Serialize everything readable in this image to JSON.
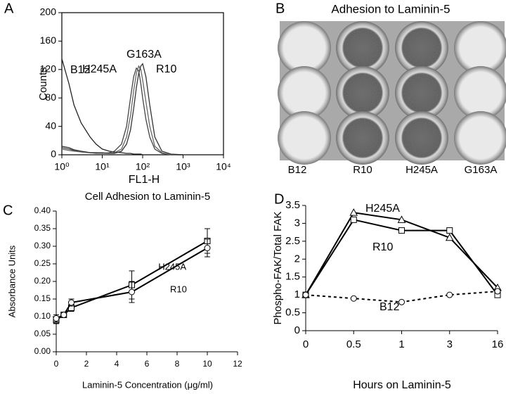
{
  "chart_data": [
    {
      "type": "line",
      "panel_label": "A",
      "xlabel": "FL1-H",
      "ylabel": "Counts",
      "xscale": "log",
      "xlim": [
        1,
        10000
      ],
      "xticks": [
        {
          "value": 1,
          "label": "10⁰"
        },
        {
          "value": 10,
          "label": "10¹"
        },
        {
          "value": 100,
          "label": "10²"
        },
        {
          "value": 1000,
          "label": "10³"
        },
        {
          "value": 10000,
          "label": "10⁴"
        }
      ],
      "ylim": [
        0,
        200
      ],
      "yticks": [
        0,
        40,
        80,
        120,
        160,
        200
      ],
      "x": [
        1,
        1.5,
        2,
        3,
        5,
        7,
        10,
        15,
        20,
        30,
        40,
        50,
        60,
        70,
        80,
        90,
        100,
        120,
        150,
        200,
        300,
        500,
        1000
      ],
      "series": [
        {
          "name": "B12",
          "color": "#222222",
          "values": [
            135,
            100,
            70,
            45,
            25,
            15,
            8,
            5,
            4,
            3,
            2,
            2,
            1,
            1,
            1,
            1,
            0,
            0,
            0,
            0,
            0,
            0,
            0
          ]
        },
        {
          "name": "H245A",
          "color": "#444444",
          "values": [
            10,
            8,
            6,
            4,
            3,
            3,
            2,
            3,
            5,
            15,
            40,
            80,
            110,
            122,
            118,
            100,
            80,
            50,
            25,
            8,
            2,
            0,
            0
          ]
        },
        {
          "name": "G163A",
          "color": "#666666",
          "values": [
            8,
            6,
            5,
            4,
            3,
            2,
            2,
            2,
            3,
            8,
            25,
            55,
            90,
            115,
            125,
            120,
            105,
            75,
            40,
            12,
            3,
            0,
            0
          ]
        },
        {
          "name": "R10",
          "color": "#333333",
          "values": [
            12,
            10,
            7,
            5,
            3,
            3,
            3,
            2,
            2,
            5,
            15,
            35,
            65,
            95,
            115,
            125,
            128,
            110,
            70,
            25,
            5,
            1,
            0
          ]
        }
      ]
    },
    {
      "type": "line",
      "panel_label": "C",
      "title": "Cell Adhesion to Laminin-5",
      "xlabel": "Laminin-5 Concentration (μg/ml)",
      "ylabel": "Absorbance Units",
      "xlim": [
        0,
        12
      ],
      "xticks": [
        0,
        2,
        4,
        6,
        8,
        10,
        12
      ],
      "ylim": [
        0,
        0.4
      ],
      "yticks": [
        {
          "value": 0,
          "label": "0.00"
        },
        {
          "value": 0.05,
          "label": "0.05"
        },
        {
          "value": 0.1,
          "label": "0.10"
        },
        {
          "value": 0.15,
          "label": "0.15"
        },
        {
          "value": 0.2,
          "label": "0.20"
        },
        {
          "value": 0.25,
          "label": "0.25"
        },
        {
          "value": 0.3,
          "label": "0.30"
        },
        {
          "value": 0.35,
          "label": "0.35"
        },
        {
          "value": 0.4,
          "label": "0.40"
        }
      ],
      "series": [
        {
          "name": "H245A",
          "color": "#000000",
          "marker": "square",
          "x": [
            0,
            0.5,
            1,
            5,
            10
          ],
          "values": [
            0.09,
            0.105,
            0.125,
            0.19,
            0.315
          ],
          "errors": [
            0.01,
            0.005,
            0.01,
            0.04,
            0.035
          ]
        },
        {
          "name": "R10",
          "color": "#000000",
          "marker": "circle",
          "x": [
            0,
            0.5,
            1,
            5,
            10
          ],
          "values": [
            0.095,
            0.105,
            0.14,
            0.17,
            0.295
          ],
          "errors": [
            0.01,
            0.005,
            0.01,
            0.03,
            0.025
          ]
        }
      ]
    },
    {
      "type": "line",
      "panel_label": "D",
      "xlabel": "Hours on Laminin-5",
      "ylabel": "Phospho-FAK/Total FAK",
      "categories": [
        "0",
        "0.5",
        "1",
        "3",
        "16"
      ],
      "ylim": [
        0,
        3.5
      ],
      "yticks": [
        0,
        0.5,
        1,
        1.5,
        2,
        2.5,
        3,
        3.5
      ],
      "series": [
        {
          "name": "H245A",
          "color": "#000000",
          "marker": "triangle",
          "values": [
            1,
            3.3,
            3.1,
            2.6,
            1.2
          ]
        },
        {
          "name": "R10",
          "color": "#000000",
          "marker": "square",
          "values": [
            1,
            3.1,
            2.8,
            2.8,
            1.0
          ]
        },
        {
          "name": "B12",
          "color": "#000000",
          "marker": "circle",
          "linestyle": "dashed",
          "values": [
            1,
            0.9,
            0.8,
            1.0,
            1.1
          ]
        }
      ]
    }
  ],
  "image_panel": {
    "panel_label": "B",
    "title": "Adhesion to Laminin-5",
    "columns": [
      "B12",
      "R10",
      "H245A",
      "G163A"
    ]
  }
}
